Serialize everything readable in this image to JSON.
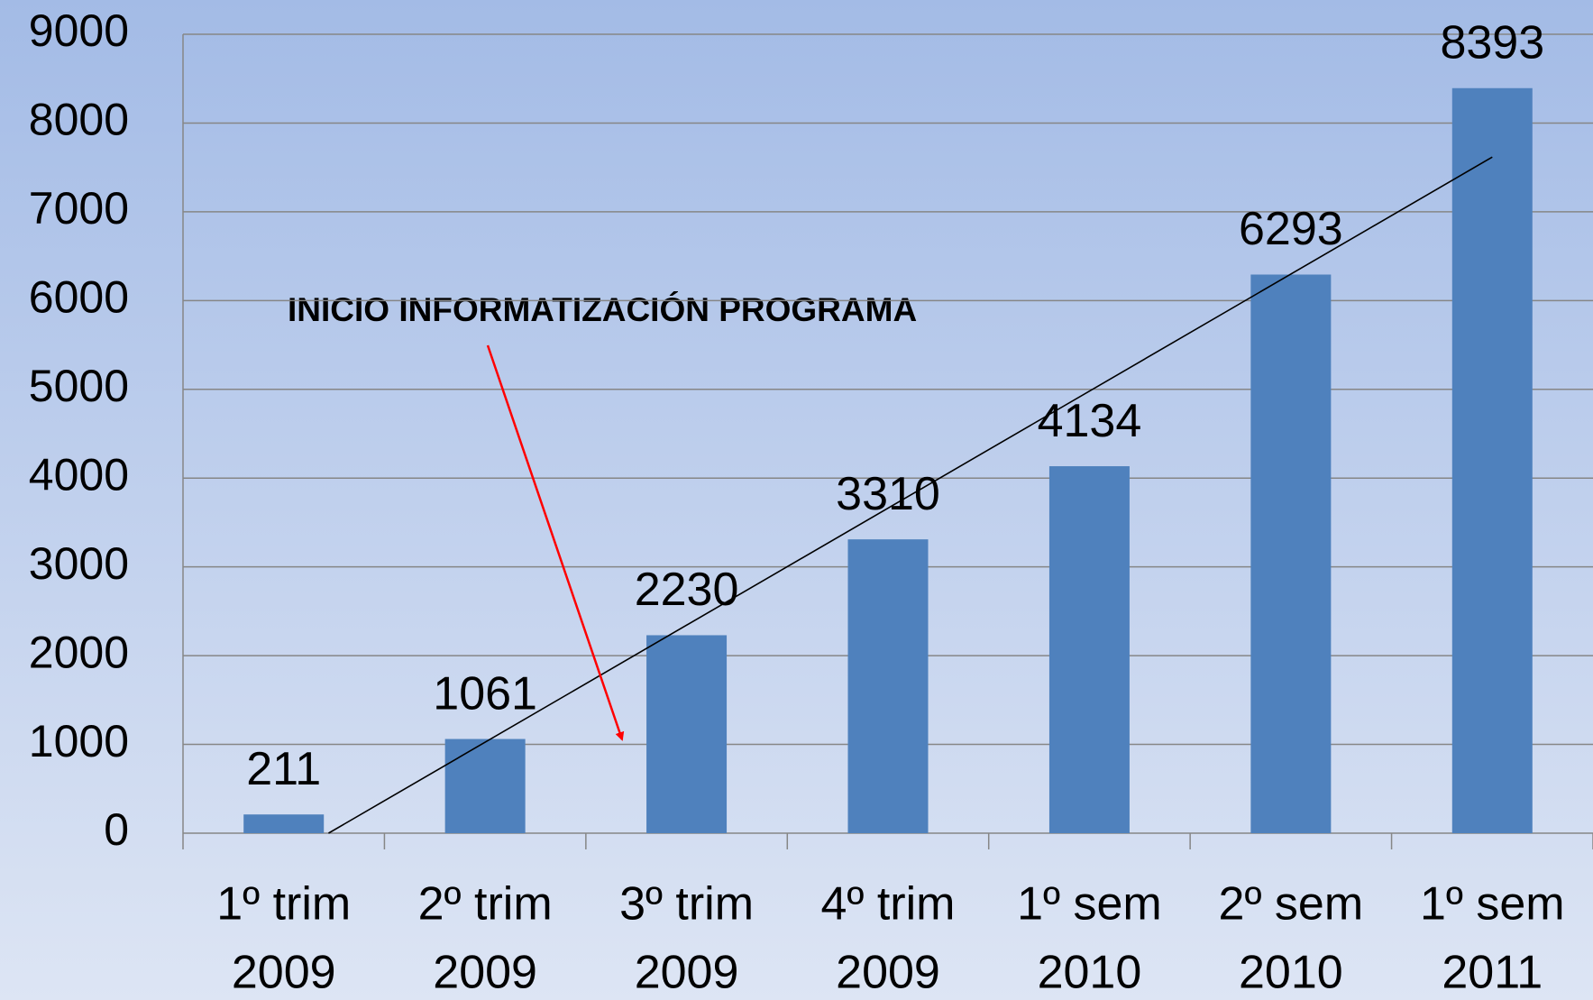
{
  "chart_data": {
    "type": "bar",
    "categories": [
      [
        "1º trim",
        "2009"
      ],
      [
        "2º trim",
        "2009"
      ],
      [
        "3º trim",
        "2009"
      ],
      [
        "4º trim",
        "2009"
      ],
      [
        "1º sem",
        "2010"
      ],
      [
        "2º sem",
        "2010"
      ],
      [
        "1º sem",
        "2011"
      ]
    ],
    "values": [
      211,
      1061,
      2230,
      3310,
      4134,
      6293,
      8393
    ],
    "color": "#4f81bd",
    "ylim": [
      0,
      9000
    ],
    "yticks": [
      0,
      1000,
      2000,
      3000,
      4000,
      5000,
      6000,
      7000,
      8000,
      9000
    ],
    "grid": true,
    "trendline": "linear",
    "annotation": "INICIO INFORMATIZACIÓN PROGRAMA"
  }
}
